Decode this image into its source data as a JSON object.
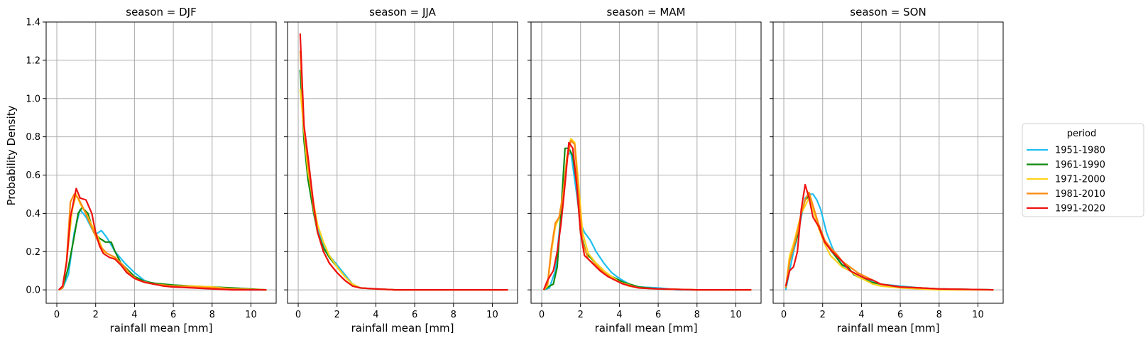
{
  "colors": {
    "1951-1980": "#1fbff0",
    "1961-1990": "#118a11",
    "1971-2000": "#ffd21a",
    "1981-2010": "#ff8a12",
    "1991-2020": "#ee1111",
    "grid": "#b0b0b0"
  },
  "chart_data": {
    "type": "line",
    "ylabel": "Probability Density",
    "xlabel": "rainfall mean [mm]",
    "ylim": [
      -0.07,
      1.4
    ],
    "xlim": [
      -0.55,
      11.3
    ],
    "yticks": [
      0.0,
      0.2,
      0.4,
      0.6,
      0.8,
      1.0,
      1.2,
      1.4
    ],
    "ytick_labels": [
      "0.0",
      "0.2",
      "0.4",
      "0.6",
      "0.8",
      "1.0",
      "1.2",
      "1.4"
    ],
    "xticks": [
      0,
      2,
      4,
      6,
      8,
      10
    ],
    "xtick_labels": [
      "0",
      "2",
      "4",
      "6",
      "8",
      "10"
    ],
    "grid": true,
    "legend": {
      "title": "period",
      "placement": "right",
      "entries": [
        "1951-1980",
        "1961-1990",
        "1971-2000",
        "1981-2010",
        "1991-2020"
      ]
    },
    "panels": [
      {
        "title": "season = DJF",
        "series": [
          {
            "name": "1951-1980",
            "x": [
              0.1,
              0.3,
              0.6,
              0.9,
              1.2,
              1.5,
              1.8,
              2.0,
              2.3,
              2.6,
              3.0,
              3.5,
              4.0,
              4.5,
              5.0,
              5.5,
              6.0,
              7.0,
              8.0,
              9.0,
              10.0,
              10.8
            ],
            "y": [
              0,
              0.01,
              0.08,
              0.3,
              0.42,
              0.38,
              0.32,
              0.29,
              0.31,
              0.27,
              0.2,
              0.14,
              0.09,
              0.05,
              0.03,
              0.025,
              0.02,
              0.015,
              0.01,
              0.005,
              0,
              0
            ]
          },
          {
            "name": "1961-1990",
            "x": [
              0.1,
              0.3,
              0.6,
              0.9,
              1.1,
              1.3,
              1.6,
              1.9,
              2.2,
              2.5,
              2.8,
              3.0,
              3.3,
              3.6,
              4.0,
              4.5,
              5.0,
              6.0,
              7.0,
              8.0,
              9.0,
              10.8
            ],
            "y": [
              0,
              0.01,
              0.12,
              0.28,
              0.4,
              0.43,
              0.4,
              0.3,
              0.27,
              0.25,
              0.25,
              0.2,
              0.14,
              0.11,
              0.07,
              0.045,
              0.035,
              0.025,
              0.02,
              0.015,
              0.01,
              0
            ]
          },
          {
            "name": "1971-2000",
            "x": [
              0.1,
              0.3,
              0.5,
              0.8,
              1.0,
              1.2,
              1.5,
              1.8,
              2.1,
              2.4,
              2.8,
              3.2,
              3.6,
              4.0,
              4.5,
              5.0,
              6.0,
              7.0,
              8.0,
              9.0,
              10.8
            ],
            "y": [
              0,
              0.01,
              0.15,
              0.42,
              0.5,
              0.45,
              0.4,
              0.34,
              0.28,
              0.2,
              0.18,
              0.14,
              0.1,
              0.06,
              0.04,
              0.03,
              0.02,
              0.02,
              0.015,
              0.005,
              0
            ]
          },
          {
            "name": "1981-2010",
            "x": [
              0.1,
              0.3,
              0.5,
              0.7,
              0.9,
              1.1,
              1.4,
              1.7,
              2.0,
              2.3,
              2.6,
              3.0,
              3.4,
              3.8,
              4.2,
              4.6,
              5.0,
              6.0,
              7.0,
              8.0,
              9.0,
              10.8
            ],
            "y": [
              0,
              0.01,
              0.15,
              0.46,
              0.5,
              0.48,
              0.42,
              0.35,
              0.28,
              0.22,
              0.19,
              0.17,
              0.13,
              0.08,
              0.05,
              0.04,
              0.03,
              0.02,
              0.015,
              0.01,
              0.005,
              0
            ]
          },
          {
            "name": "1991-2020",
            "x": [
              0.1,
              0.3,
              0.5,
              0.7,
              1.0,
              1.2,
              1.5,
              1.8,
              2.0,
              2.2,
              2.4,
              2.7,
              3.0,
              3.3,
              3.6,
              4.0,
              4.5,
              5.0,
              5.5,
              6.0,
              7.0,
              8.0,
              9.0,
              10.8
            ],
            "y": [
              0,
              0.02,
              0.14,
              0.38,
              0.53,
              0.48,
              0.47,
              0.4,
              0.3,
              0.23,
              0.19,
              0.17,
              0.16,
              0.13,
              0.09,
              0.06,
              0.04,
              0.03,
              0.02,
              0.015,
              0.01,
              0.005,
              0,
              0
            ]
          }
        ]
      },
      {
        "title": "season = JJA",
        "series": [
          {
            "name": "1951-1980",
            "x": [
              0.1,
              0.3,
              0.5,
              0.8,
              1.0,
              1.3,
              1.6,
              2.0,
              2.4,
              2.8,
              3.2,
              4.0,
              5.0,
              6.0,
              8.0,
              10.8
            ],
            "y": [
              1.15,
              0.8,
              0.6,
              0.42,
              0.32,
              0.24,
              0.18,
              0.13,
              0.08,
              0.03,
              0.01,
              0.005,
              0,
              0,
              0,
              0
            ]
          },
          {
            "name": "1961-1990",
            "x": [
              0.1,
              0.3,
              0.5,
              0.8,
              1.0,
              1.3,
              1.6,
              2.0,
              2.4,
              2.8,
              3.2,
              4.0,
              5.0,
              6.0,
              8.0,
              10.8
            ],
            "y": [
              1.15,
              0.78,
              0.58,
              0.4,
              0.3,
              0.22,
              0.17,
              0.12,
              0.07,
              0.03,
              0.01,
              0.005,
              0,
              0,
              0,
              0
            ]
          },
          {
            "name": "1971-2000",
            "x": [
              0.1,
              0.3,
              0.5,
              0.8,
              1.0,
              1.3,
              1.6,
              2.0,
              2.4,
              2.8,
              3.2,
              4.0,
              5.0,
              6.0,
              8.0,
              10.8
            ],
            "y": [
              1.05,
              0.83,
              0.62,
              0.45,
              0.34,
              0.25,
              0.18,
              0.12,
              0.07,
              0.03,
              0.01,
              0.005,
              0,
              0,
              0,
              0
            ]
          },
          {
            "name": "1981-2010",
            "x": [
              0.1,
              0.3,
              0.5,
              0.8,
              1.0,
              1.3,
              1.6,
              2.0,
              2.4,
              2.8,
              3.2,
              4.0,
              5.0,
              6.0,
              8.0,
              10.8
            ],
            "y": [
              1.25,
              0.85,
              0.66,
              0.42,
              0.3,
              0.2,
              0.14,
              0.09,
              0.05,
              0.02,
              0.01,
              0.005,
              0,
              0,
              0,
              0
            ]
          },
          {
            "name": "1991-2020",
            "x": [
              0.1,
              0.3,
              0.5,
              0.8,
              1.0,
              1.3,
              1.6,
              2.0,
              2.4,
              2.8,
              3.2,
              4.0,
              5.0,
              6.0,
              8.0,
              10.8
            ],
            "y": [
              1.34,
              0.86,
              0.7,
              0.44,
              0.3,
              0.2,
              0.14,
              0.09,
              0.05,
              0.02,
              0.01,
              0.005,
              0,
              0,
              0,
              0
            ]
          }
        ]
      },
      {
        "title": "season = MAM",
        "series": [
          {
            "name": "1951-1980",
            "x": [
              0.1,
              0.4,
              0.7,
              1.0,
              1.3,
              1.5,
              1.8,
              2.0,
              2.2,
              2.5,
              2.8,
              3.2,
              3.6,
              4.0,
              4.5,
              5.0,
              6.0,
              7.0,
              8.0,
              10.8
            ],
            "y": [
              0,
              0.01,
              0.1,
              0.4,
              0.7,
              0.72,
              0.5,
              0.35,
              0.3,
              0.26,
              0.2,
              0.14,
              0.09,
              0.06,
              0.03,
              0.015,
              0.01,
              0,
              0,
              0
            ]
          },
          {
            "name": "1961-1990",
            "x": [
              0.1,
              0.4,
              0.6,
              0.8,
              1.0,
              1.2,
              1.4,
              1.6,
              1.8,
              2.0,
              2.3,
              2.6,
              3.0,
              3.4,
              3.8,
              4.2,
              5.0,
              6.0,
              8.0,
              10.8
            ],
            "y": [
              0,
              0.02,
              0.03,
              0.12,
              0.42,
              0.74,
              0.74,
              0.7,
              0.55,
              0.3,
              0.19,
              0.16,
              0.12,
              0.08,
              0.06,
              0.04,
              0.015,
              0.005,
              0,
              0
            ]
          },
          {
            "name": "1971-2000",
            "x": [
              0.1,
              0.3,
              0.5,
              0.7,
              0.9,
              1.1,
              1.3,
              1.5,
              1.7,
              1.9,
              2.1,
              2.4,
              2.8,
              3.2,
              3.6,
              4.0,
              4.5,
              5.0,
              6.0,
              8.0,
              10.8
            ],
            "y": [
              0,
              0.02,
              0.2,
              0.33,
              0.38,
              0.5,
              0.7,
              0.79,
              0.77,
              0.55,
              0.3,
              0.19,
              0.14,
              0.1,
              0.07,
              0.04,
              0.025,
              0.01,
              0.005,
              0,
              0
            ]
          },
          {
            "name": "1981-2010",
            "x": [
              0.1,
              0.3,
              0.5,
              0.7,
              0.9,
              1.1,
              1.3,
              1.5,
              1.7,
              1.9,
              2.1,
              2.4,
              2.8,
              3.2,
              3.6,
              4.0,
              4.5,
              5.0,
              6.0,
              8.0,
              10.8
            ],
            "y": [
              0,
              0.03,
              0.22,
              0.35,
              0.38,
              0.5,
              0.68,
              0.78,
              0.76,
              0.5,
              0.25,
              0.16,
              0.13,
              0.09,
              0.06,
              0.04,
              0.02,
              0.01,
              0.005,
              0,
              0
            ]
          },
          {
            "name": "1991-2020",
            "x": [
              0.1,
              0.3,
              0.6,
              0.8,
              1.0,
              1.2,
              1.4,
              1.6,
              1.8,
              2.0,
              2.2,
              2.4,
              2.6,
              3.0,
              3.4,
              3.8,
              4.2,
              5.0,
              6.0,
              8.0,
              10.8
            ],
            "y": [
              0,
              0.05,
              0.1,
              0.2,
              0.35,
              0.55,
              0.77,
              0.74,
              0.55,
              0.3,
              0.18,
              0.16,
              0.14,
              0.1,
              0.07,
              0.05,
              0.03,
              0.01,
              0.005,
              0,
              0
            ]
          }
        ]
      },
      {
        "title": "season = SON",
        "series": [
          {
            "name": "1951-1980",
            "x": [
              0.1,
              0.3,
              0.5,
              0.7,
              0.9,
              1.1,
              1.3,
              1.5,
              1.7,
              1.9,
              2.2,
              2.5,
              2.8,
              3.1,
              3.4,
              3.8,
              4.2,
              4.6,
              5.0,
              6.0,
              7.0,
              8.0,
              10.8
            ],
            "y": [
              0,
              0.1,
              0.2,
              0.28,
              0.38,
              0.48,
              0.5,
              0.5,
              0.47,
              0.42,
              0.3,
              0.22,
              0.16,
              0.12,
              0.1,
              0.08,
              0.06,
              0.04,
              0.03,
              0.02,
              0.01,
              0.005,
              0
            ]
          },
          {
            "name": "1961-1990",
            "x": [
              0.1,
              0.3,
              0.5,
              0.7,
              0.9,
              1.1,
              1.3,
              1.5,
              1.8,
              2.1,
              2.4,
              2.7,
              3.0,
              3.3,
              3.6,
              4.0,
              4.5,
              5.0,
              6.0,
              7.0,
              8.0,
              10.8
            ],
            "y": [
              0.01,
              0.15,
              0.22,
              0.28,
              0.4,
              0.47,
              0.49,
              0.42,
              0.34,
              0.26,
              0.21,
              0.17,
              0.13,
              0.12,
              0.08,
              0.06,
              0.04,
              0.03,
              0.015,
              0.01,
              0.005,
              0
            ]
          },
          {
            "name": "1971-2000",
            "x": [
              0.1,
              0.3,
              0.5,
              0.7,
              0.9,
              1.1,
              1.3,
              1.5,
              1.8,
              2.1,
              2.4,
              2.7,
              3.0,
              3.4,
              3.8,
              4.2,
              4.6,
              5.0,
              6.0,
              7.0,
              8.0,
              10.8
            ],
            "y": [
              0.01,
              0.18,
              0.24,
              0.32,
              0.4,
              0.44,
              0.48,
              0.42,
              0.32,
              0.24,
              0.18,
              0.15,
              0.12,
              0.1,
              0.07,
              0.05,
              0.03,
              0.02,
              0.01,
              0.005,
              0,
              0
            ]
          },
          {
            "name": "1981-2010",
            "x": [
              0.1,
              0.3,
              0.5,
              0.7,
              0.9,
              1.1,
              1.3,
              1.5,
              1.8,
              2.1,
              2.4,
              2.7,
              3.0,
              3.4,
              3.8,
              4.2,
              4.6,
              5.0,
              6.0,
              7.0,
              8.0,
              10.8
            ],
            "y": [
              0.01,
              0.15,
              0.22,
              0.3,
              0.4,
              0.47,
              0.51,
              0.44,
              0.34,
              0.26,
              0.22,
              0.19,
              0.15,
              0.12,
              0.09,
              0.07,
              0.05,
              0.03,
              0.015,
              0.01,
              0.005,
              0
            ]
          },
          {
            "name": "1991-2020",
            "x": [
              0.1,
              0.3,
              0.5,
              0.7,
              0.9,
              1.1,
              1.3,
              1.5,
              1.8,
              2.1,
              2.4,
              2.7,
              3.0,
              3.4,
              3.8,
              4.2,
              4.6,
              5.0,
              6.0,
              7.0,
              8.0,
              10.8
            ],
            "y": [
              0.02,
              0.1,
              0.12,
              0.2,
              0.42,
              0.55,
              0.48,
              0.38,
              0.33,
              0.25,
              0.21,
              0.18,
              0.15,
              0.1,
              0.08,
              0.06,
              0.05,
              0.03,
              0.015,
              0.01,
              0.005,
              0
            ]
          }
        ]
      }
    ]
  }
}
